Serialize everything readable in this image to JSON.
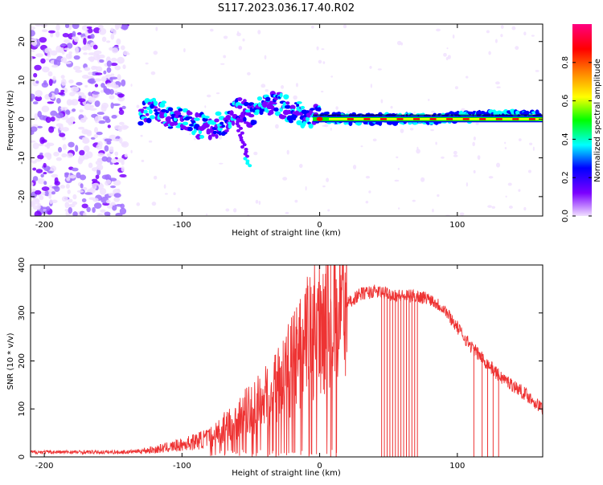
{
  "figure": {
    "title": "S117.2023.036.17.40.R02"
  },
  "chart_data": [
    {
      "type": "heatmap",
      "xlabel": "Height of straight line (km)",
      "ylabel": "Frequency (Hz)",
      "xlim": [
        -210,
        162
      ],
      "ylim": [
        -25,
        24.5
      ],
      "x_ticks": [
        -200,
        -100,
        0,
        100
      ],
      "y_ticks": [
        -20,
        -10,
        0,
        10,
        20
      ],
      "x_tick_labels": [
        "-200",
        "-100",
        "0",
        "100"
      ],
      "y_tick_labels": [
        "-20",
        "-10",
        "0",
        "10",
        "20"
      ],
      "colorbar": {
        "label": "Normalized spectral amplitude",
        "range": [
          0,
          1
        ],
        "ticks": [
          0.0,
          0.2,
          0.4,
          0.6,
          0.8
        ],
        "tick_labels": [
          "0.0",
          "0.2",
          "0.4",
          "0.6",
          "0.8"
        ],
        "colormap": [
          "#f0e0ff",
          "#7b00ff",
          "#0000ff",
          "#00ffff",
          "#00ff00",
          "#ffff00",
          "#ff8000",
          "#ff0000",
          "#ff0080"
        ]
      },
      "trace": {
        "x": [
          -130,
          -120,
          -110,
          -100,
          -90,
          -80,
          -70,
          -60,
          -55,
          -50,
          -40,
          -30,
          -20,
          -10,
          0,
          20,
          40,
          60,
          80,
          100,
          120,
          140,
          160
        ],
        "y": [
          1.5,
          2.5,
          1,
          0,
          -1.5,
          -2,
          -1,
          3,
          2,
          1,
          4,
          4,
          2,
          1,
          0.5,
          0,
          0,
          0,
          0,
          0.5,
          0.8,
          1,
          1
        ]
      },
      "strong_segment": {
        "x": [
          -5,
          162
        ],
        "y": [
          0,
          0
        ]
      },
      "scatter_range": {
        "x": [
          -210,
          -140
        ],
        "y": [
          -25,
          24.5
        ]
      }
    },
    {
      "type": "line",
      "xlabel": "Height of straight line (km)",
      "ylabel": "SNR (10 * v/v)",
      "xlim": [
        -210,
        162
      ],
      "ylim": [
        0,
        400
      ],
      "x_ticks": [
        -200,
        -100,
        0,
        100
      ],
      "y_ticks": [
        0,
        100,
        200,
        300,
        400
      ],
      "x_tick_labels": [
        "-200",
        "-100",
        "0",
        "100"
      ],
      "y_tick_labels": [
        "0",
        "100",
        "200",
        "300",
        "400"
      ],
      "color": "#ee3333",
      "envelope": {
        "x": [
          -210,
          -140,
          -120,
          -100,
          -80,
          -60,
          -40,
          -20,
          -10,
          0,
          10,
          20,
          30,
          40,
          50,
          60,
          70,
          80,
          90,
          100,
          110,
          120,
          130,
          140,
          150,
          162
        ],
        "y": [
          10,
          10,
          15,
          25,
          40,
          80,
          120,
          190,
          240,
          280,
          300,
          320,
          340,
          345,
          340,
          335,
          335,
          330,
          310,
          270,
          230,
          200,
          170,
          150,
          130,
          100
        ]
      },
      "spikes": [
        {
          "x": 8,
          "y": 400
        },
        {
          "x": 12,
          "y": 370
        }
      ],
      "dropouts_x": [
        45,
        47,
        49,
        51,
        53,
        55,
        57,
        59,
        61,
        63,
        65,
        67,
        69,
        71,
        112,
        118,
        122,
        126,
        130
      ]
    }
  ]
}
